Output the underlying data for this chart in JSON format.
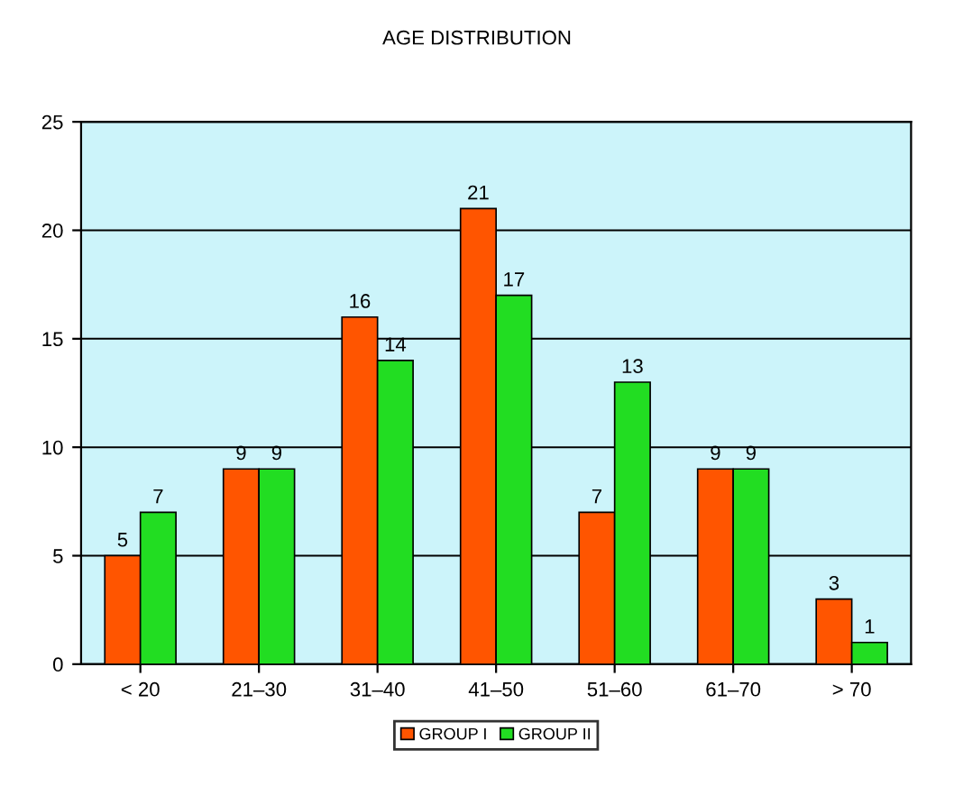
{
  "chart_data": {
    "type": "bar",
    "title": "AGE DISTRIBUTION",
    "categories": [
      "< 20",
      "21–30",
      "31–40",
      "41–50",
      "51–60",
      "61–70",
      "> 70"
    ],
    "series": [
      {
        "name": "GROUP I",
        "color": "#ff5500",
        "values": [
          5,
          9,
          16,
          21,
          7,
          9,
          3
        ]
      },
      {
        "name": "GROUP II",
        "color": "#22dd22",
        "values": [
          7,
          9,
          14,
          17,
          13,
          9,
          1
        ]
      }
    ],
    "ylim": [
      0,
      25
    ],
    "yticks": [
      0,
      5,
      10,
      15,
      20,
      25
    ],
    "grid": "y",
    "legend": "bottom",
    "data_labels": true
  }
}
